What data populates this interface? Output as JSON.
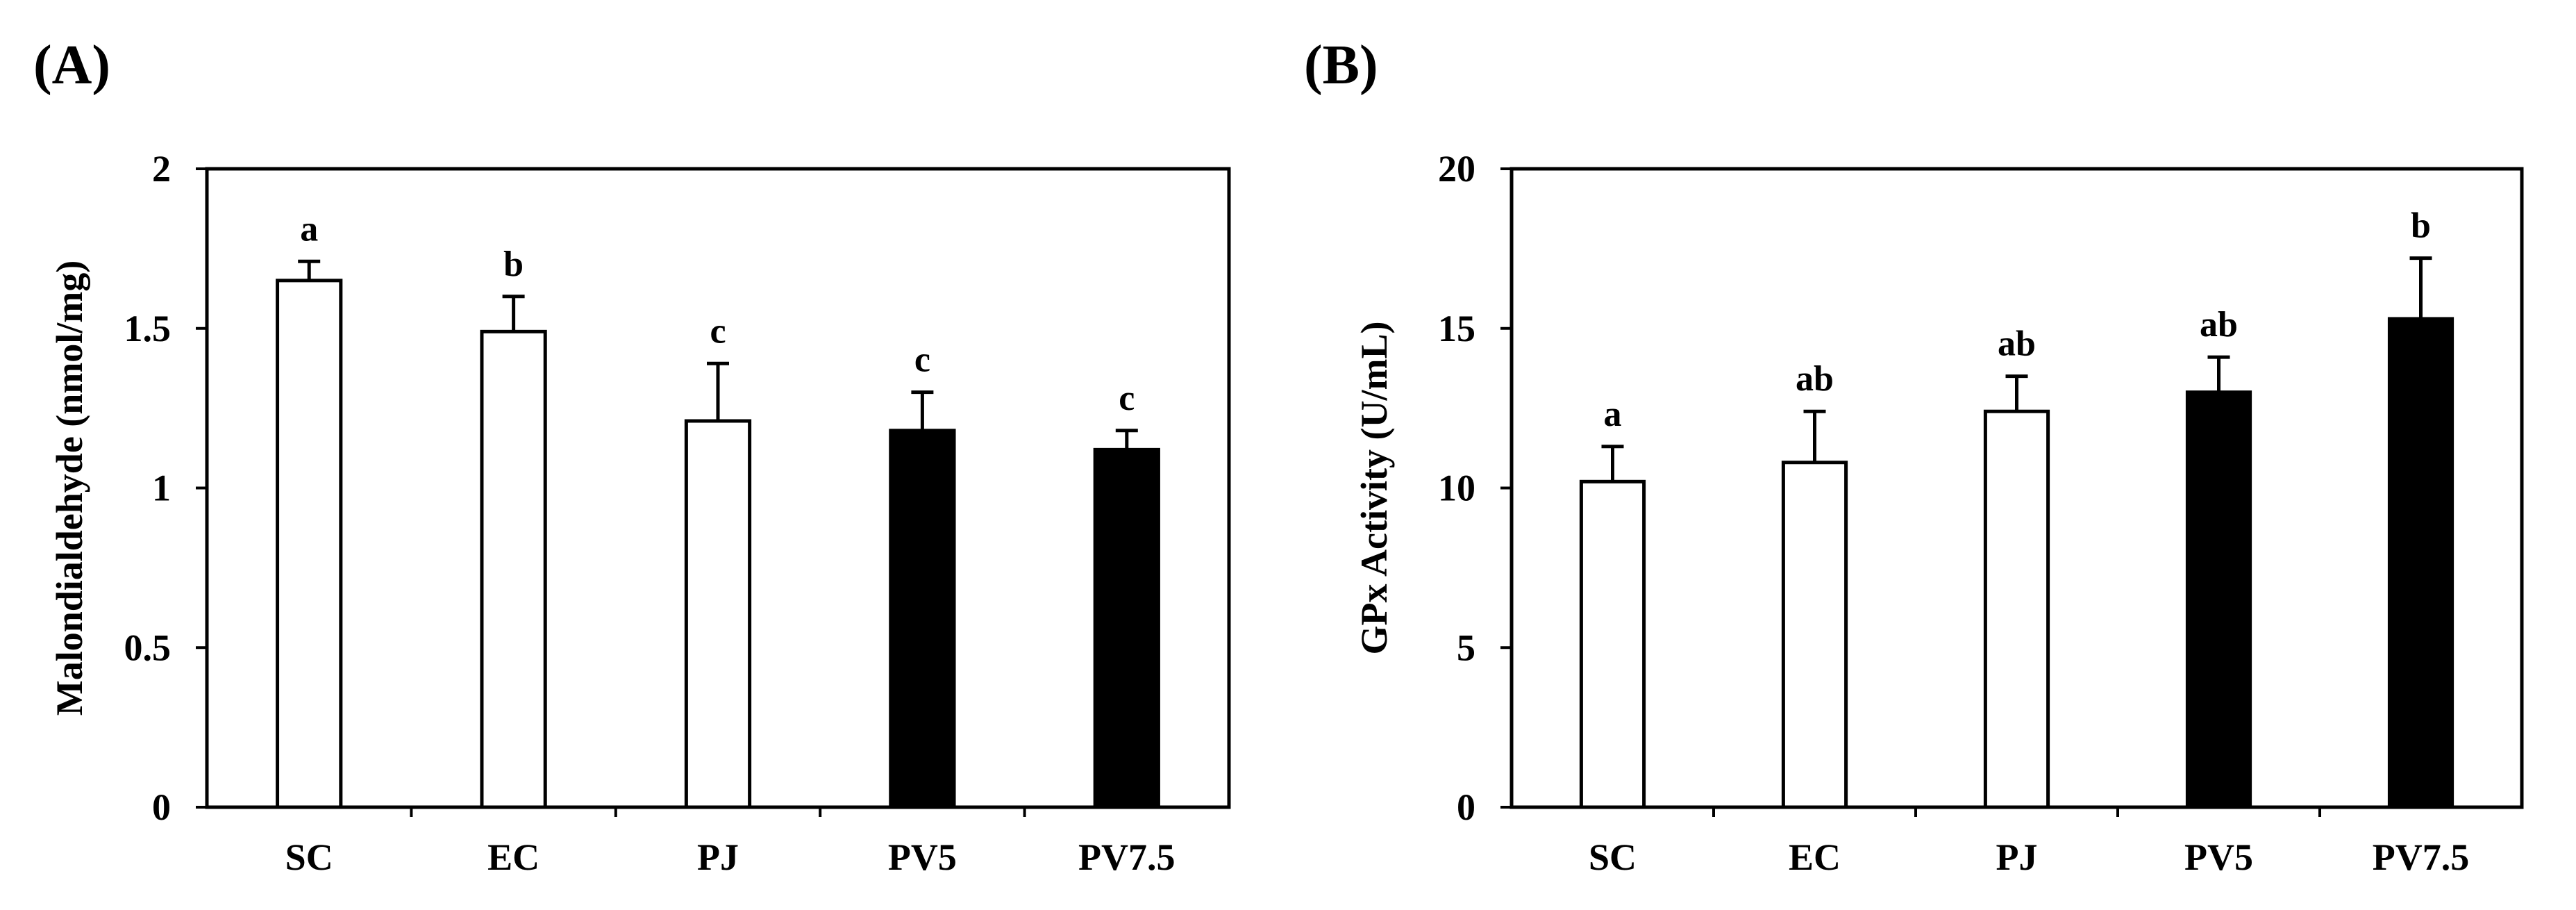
{
  "chart_data": [
    {
      "type": "bar",
      "panel_label": "(A)",
      "categories": [
        "SC",
        "EC",
        "PJ",
        "PV5",
        "PV7.5"
      ],
      "values": [
        1.65,
        1.49,
        1.21,
        1.18,
        1.12
      ],
      "errors": [
        0.06,
        0.11,
        0.18,
        0.12,
        0.06
      ],
      "significance": [
        "a",
        "b",
        "c",
        "c",
        "c"
      ],
      "bar_colors": [
        "#ffffff",
        "#ffffff",
        "#ffffff",
        "#000000",
        "#000000"
      ],
      "ylabel": "Malondialdehyde (nmol/mg)",
      "ylim": [
        0,
        2
      ],
      "yticks": [
        0,
        0.5,
        1,
        1.5,
        2
      ],
      "ytick_labels": [
        "0",
        "0.5",
        "1",
        "1.5",
        "2"
      ],
      "grid": false
    },
    {
      "type": "bar",
      "panel_label": "(B)",
      "categories": [
        "SC",
        "EC",
        "PJ",
        "PV5",
        "PV7.5"
      ],
      "values": [
        10.2,
        10.8,
        12.4,
        13.0,
        15.3
      ],
      "errors": [
        1.1,
        1.6,
        1.1,
        1.1,
        1.9
      ],
      "significance": [
        "a",
        "ab",
        "ab",
        "ab",
        "b"
      ],
      "bar_colors": [
        "#ffffff",
        "#ffffff",
        "#ffffff",
        "#000000",
        "#000000"
      ],
      "ylabel": "GPx Activity (U/mL)",
      "ylim": [
        0,
        20
      ],
      "yticks": [
        0,
        5,
        10,
        15,
        20
      ],
      "ytick_labels": [
        "0",
        "5",
        "10",
        "15",
        "20"
      ],
      "grid": false
    }
  ]
}
